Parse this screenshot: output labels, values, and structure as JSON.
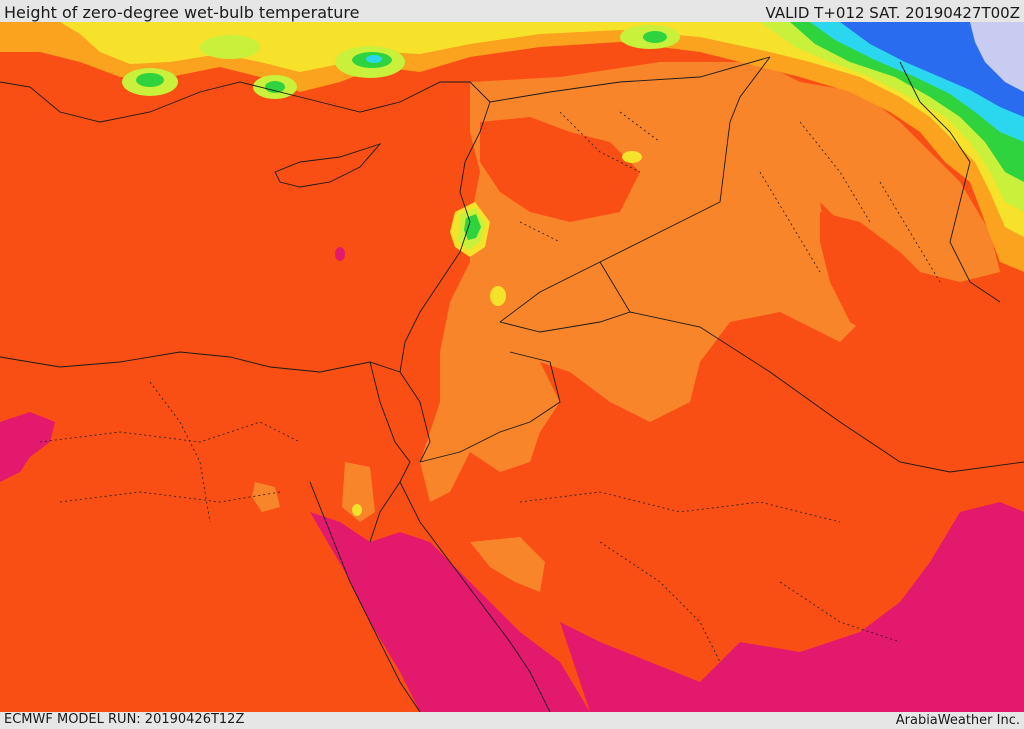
{
  "header": {
    "title": "Height of zero-degree wet-bulb temperature",
    "valid": "VALID T+012 SAT. 20190427T00Z"
  },
  "footer": {
    "model_run": "ECMWF MODEL RUN: 20190426T12Z",
    "brand": "ArabiaWeather Inc."
  },
  "colors": {
    "base": "#f94f14",
    "light_orange": "#f9852b",
    "orange_yellow": "#fba21e",
    "yellow": "#f7e22b",
    "lime": "#c9f03a",
    "green": "#2ed33e",
    "cyan": "#2bd7ee",
    "blue": "#2a6cf0",
    "lavender": "#c8ccf0",
    "magenta": "#e3196d",
    "borders": "#1a1a1a"
  }
}
